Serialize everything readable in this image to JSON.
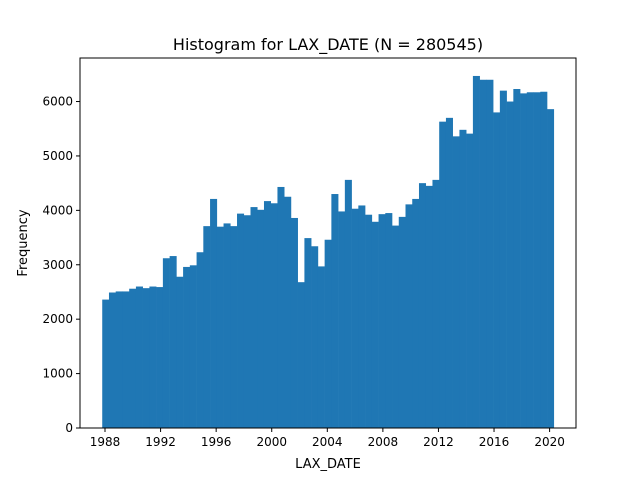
{
  "chart_data": {
    "type": "bar",
    "title": "Histogram for LAX_DATE (N = 280545)",
    "xlabel": "LAX_DATE",
    "ylabel": "Frequency",
    "x_range": [
      1987.8,
      2020.3
    ],
    "xlim": [
      1986.2,
      2021.9
    ],
    "ylim": [
      0,
      6800
    ],
    "x_ticks": [
      "1988",
      "1992",
      "1996",
      "2000",
      "2004",
      "2008",
      "2012",
      "2016",
      "2020"
    ],
    "y_ticks": [
      "0",
      "1000",
      "2000",
      "3000",
      "4000",
      "5000",
      "6000"
    ],
    "grid": false,
    "legend": "none",
    "bar_color": "#1f77b4",
    "values": [
      2360,
      2490,
      2510,
      2510,
      2560,
      2600,
      2570,
      2600,
      2590,
      3120,
      3160,
      2780,
      2960,
      2990,
      3230,
      3710,
      4210,
      3700,
      3760,
      3710,
      3940,
      3910,
      4060,
      4010,
      4170,
      4130,
      4430,
      4250,
      3860,
      2680,
      3490,
      3340,
      2970,
      3460,
      4300,
      3980,
      4560,
      4030,
      4090,
      3920,
      3790,
      3930,
      3950,
      3720,
      3880,
      4110,
      4210,
      4500,
      4450,
      4560,
      5630,
      5700,
      5360,
      5480,
      5410,
      6470,
      6400,
      6400,
      5800,
      6200,
      6000,
      6230,
      6150,
      6170,
      6170,
      6180,
      5860
    ]
  }
}
